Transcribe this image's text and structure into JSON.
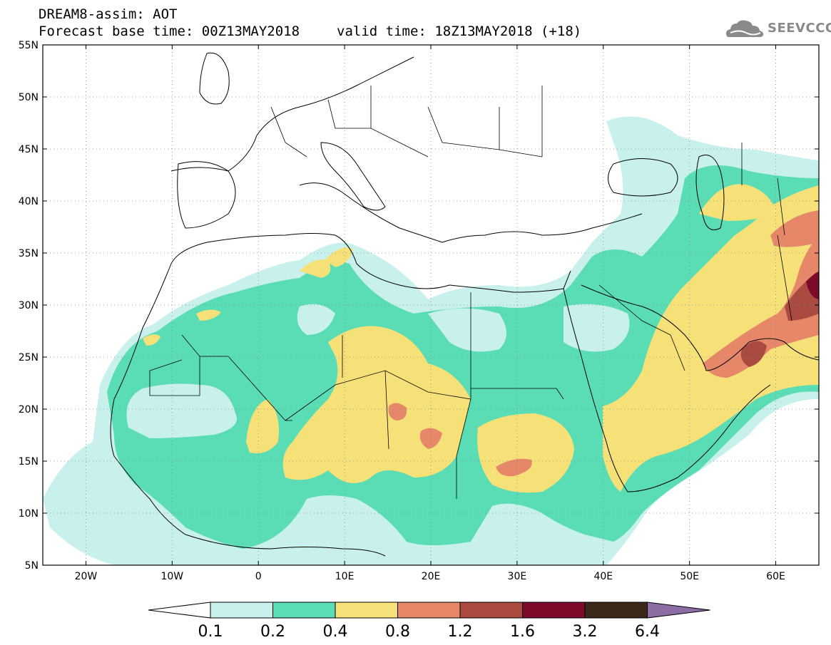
{
  "header": {
    "line1": "DREAM8-assim: AOT",
    "base_time": "Forecast base time: 00Z13MAY2018",
    "valid_time": "valid time: 18Z13MAY2018 (+18)"
  },
  "logo": {
    "text": "SEEVCCC",
    "icon": "cloud-icon",
    "color": "#8a8a8a"
  },
  "map": {
    "lon_range": [
      -25,
      65
    ],
    "lat_range": [
      5,
      55
    ],
    "lon_ticks": [
      {
        "lon": -20,
        "label": "20W"
      },
      {
        "lon": -10,
        "label": "10W"
      },
      {
        "lon": 0,
        "label": "0"
      },
      {
        "lon": 10,
        "label": "10E"
      },
      {
        "lon": 20,
        "label": "20E"
      },
      {
        "lon": 30,
        "label": "30E"
      },
      {
        "lon": 40,
        "label": "40E"
      },
      {
        "lon": 50,
        "label": "50E"
      },
      {
        "lon": 60,
        "label": "60E"
      }
    ],
    "lat_ticks": [
      {
        "lat": 55,
        "label": "55N"
      },
      {
        "lat": 50,
        "label": "50N"
      },
      {
        "lat": 45,
        "label": "45N"
      },
      {
        "lat": 40,
        "label": "40N"
      },
      {
        "lat": 35,
        "label": "35N"
      },
      {
        "lat": 30,
        "label": "30N"
      },
      {
        "lat": 25,
        "label": "25N"
      },
      {
        "lat": 20,
        "label": "20N"
      },
      {
        "lat": 15,
        "label": "15N"
      },
      {
        "lat": 10,
        "label": "10N"
      },
      {
        "lat": 5,
        "label": "5N"
      }
    ],
    "gridlines": true
  },
  "colorbar": {
    "levels": [
      "0.1",
      "0.2",
      "0.4",
      "0.8",
      "1.2",
      "1.6",
      "3.2",
      "6.4"
    ],
    "colors": [
      "#ffffff",
      "#c8f0ec",
      "#5adcb4",
      "#f5e178",
      "#e6876a",
      "#aa4b41",
      "#7d0a28",
      "#3c2819",
      "#8c6ea5"
    ]
  }
}
